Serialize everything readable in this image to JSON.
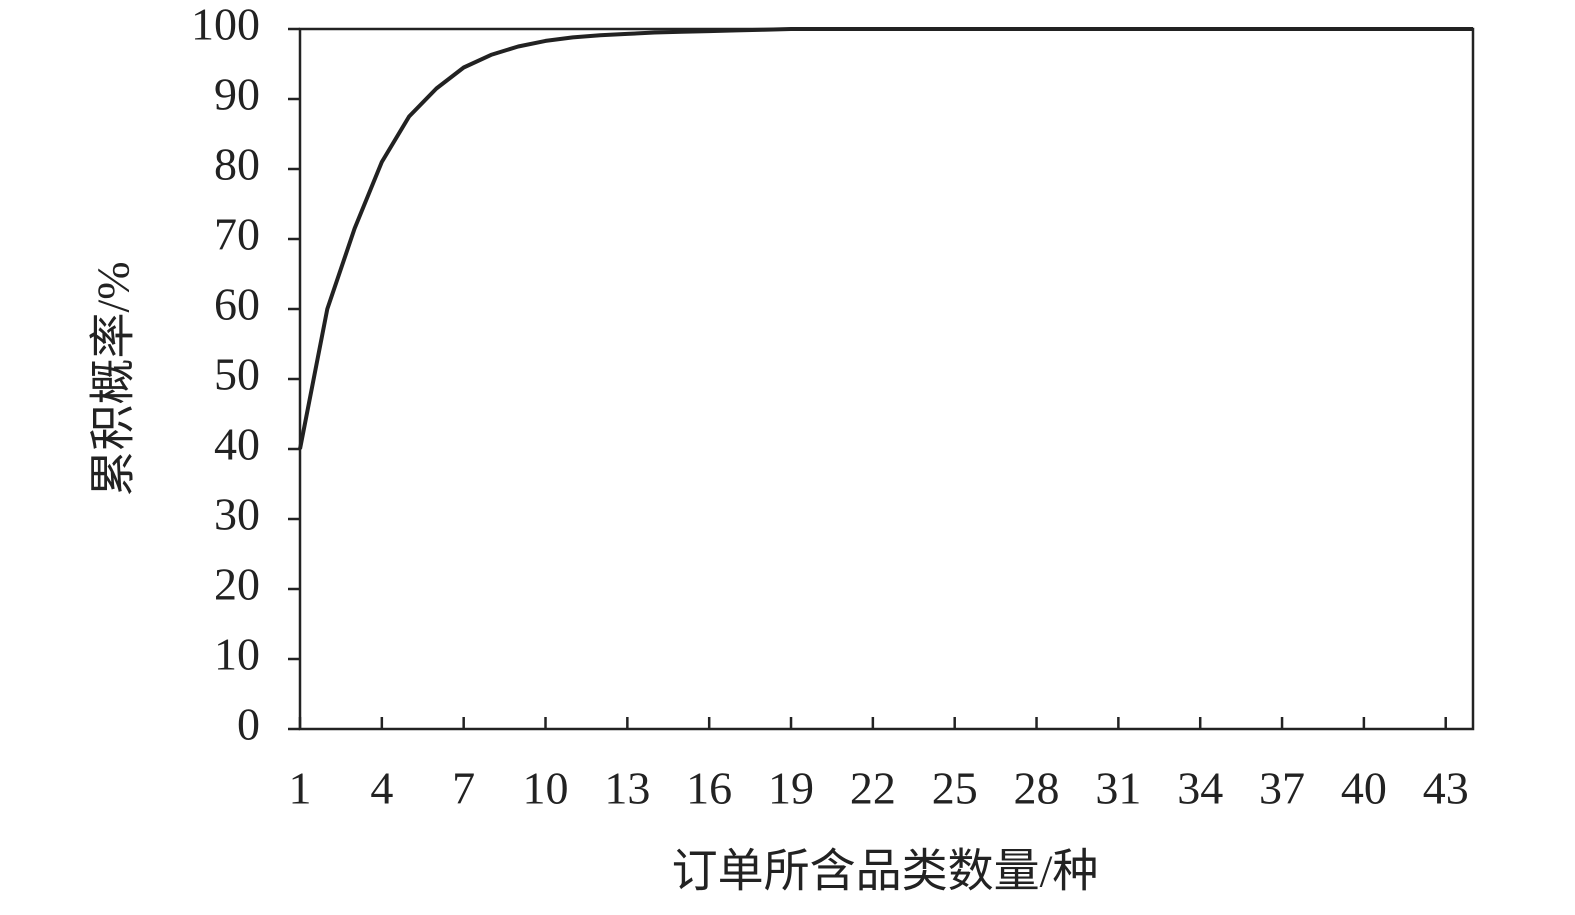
{
  "chart_data": {
    "type": "line",
    "x_label": "订单所含品类数量/种",
    "y_label": "累积概率/%",
    "x": [
      1,
      2,
      3,
      4,
      5,
      6,
      7,
      8,
      9,
      10,
      11,
      12,
      13,
      14,
      15,
      16,
      17,
      18,
      19,
      20,
      21,
      22,
      23,
      24,
      25,
      26,
      27,
      28,
      29,
      30,
      31,
      32,
      33,
      34,
      35,
      36,
      37,
      38,
      39,
      40,
      41,
      42,
      43,
      44
    ],
    "series": [
      {
        "color": "#222222",
        "values": [
          40,
          60,
          71.5,
          81,
          87.5,
          91.5,
          94.5,
          96.3,
          97.5,
          98.3,
          98.8,
          99.1,
          99.3,
          99.5,
          99.6,
          99.7,
          99.8,
          99.9,
          100,
          100,
          100,
          100,
          100,
          100,
          100,
          100,
          100,
          100,
          100,
          100,
          100,
          100,
          100,
          100,
          100,
          100,
          100,
          100,
          100,
          100,
          100,
          100,
          100,
          100
        ]
      }
    ],
    "xlim": [
      1,
      44
    ],
    "xticks": [
      1,
      4,
      7,
      10,
      13,
      16,
      19,
      22,
      25,
      28,
      31,
      34,
      37,
      40,
      43
    ],
    "ylim": [
      0,
      100
    ],
    "yticks": [
      0,
      10,
      20,
      30,
      40,
      50,
      60,
      70,
      80,
      90,
      100
    ],
    "grid": false
  }
}
